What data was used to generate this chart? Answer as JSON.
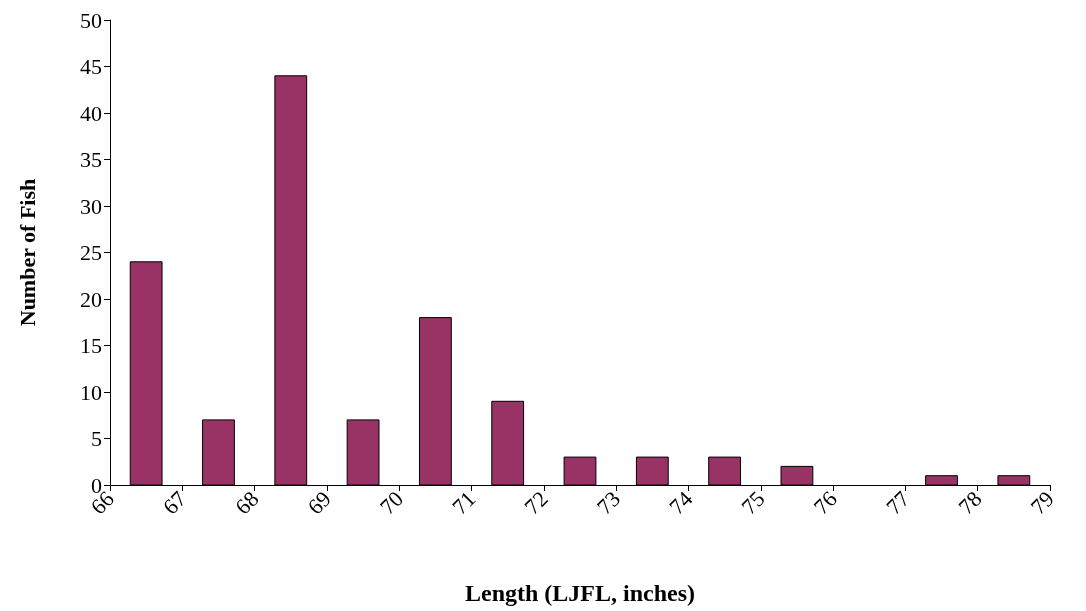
{
  "chart_data": {
    "type": "histogram",
    "xlabel": "Length (LJFL, inches)",
    "ylabel": "Number of Fish",
    "bins": [
      66,
      67,
      68,
      69,
      70,
      71,
      72,
      73,
      74,
      75,
      76,
      77,
      78,
      79
    ],
    "values": [
      24,
      7,
      44,
      7,
      18,
      9,
      3,
      3,
      3,
      2,
      0,
      1,
      1
    ],
    "color": "#993366",
    "xlim": [
      66,
      79
    ],
    "xticks": [
      66,
      67,
      68,
      69,
      70,
      71,
      72,
      73,
      74,
      75,
      76,
      77,
      78,
      79
    ],
    "ylim": [
      0,
      50
    ],
    "yticks": [
      0,
      5,
      10,
      15,
      20,
      25,
      30,
      35,
      40,
      45,
      50
    ],
    "grid": false
  }
}
